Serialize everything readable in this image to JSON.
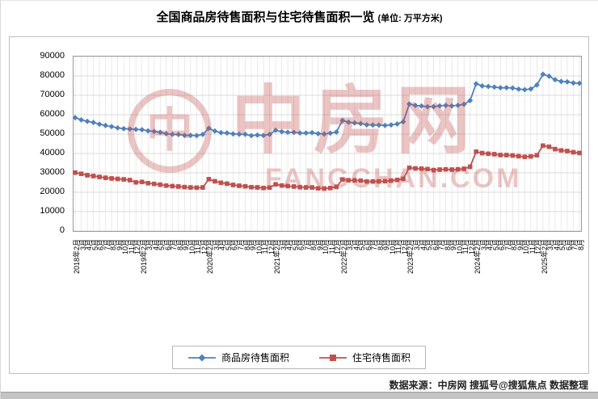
{
  "title": {
    "main": "全国商品房待售面积与住宅待售面积一览",
    "unit": "(单位: 万平方米)"
  },
  "watermark": {
    "symbol": "中",
    "name": "中房网",
    "domain": "FANGCHAN.COM"
  },
  "source_note": "数据来源：中房网 搜狐号@搜狐焦点 数据整理",
  "chart_data": {
    "type": "line",
    "title": "全国商品房待售面积与住宅待售面积一览",
    "unit": "万平方米",
    "xlabel": "",
    "ylabel": "",
    "ylim": [
      0,
      90000
    ],
    "ytick_interval": 10000,
    "grid": true,
    "legend_position": "bottom",
    "x": [
      "2018年2月",
      "3月",
      "4月",
      "5月",
      "6月",
      "7月",
      "8月",
      "9月",
      "10月",
      "11月",
      "12月",
      "2019年2月",
      "3月",
      "4月",
      "5月",
      "6月",
      "7月",
      "8月",
      "9月",
      "10月",
      "11月",
      "12月",
      "2020年2月",
      "3月",
      "4月",
      "5月",
      "6月",
      "7月",
      "8月",
      "9月",
      "10月",
      "11月",
      "12月",
      "2021年2月",
      "3月",
      "4月",
      "5月",
      "6月",
      "7月",
      "8月",
      "9月",
      "10月",
      "11月",
      "12月",
      "2022年2月",
      "3月",
      "4月",
      "5月",
      "6月",
      "7月",
      "8月",
      "9月",
      "10月",
      "11月",
      "12月",
      "2023年2月",
      "3月",
      "4月",
      "5月",
      "6月",
      "7月",
      "8月",
      "9月",
      "10月",
      "11月",
      "12月",
      "2024年2月",
      "3月",
      "4月",
      "5月",
      "6月",
      "7月",
      "8月",
      "9月",
      "10月",
      "11月",
      "12月",
      "2025年2月",
      "3月",
      "4月",
      "5月",
      "6月",
      "7月",
      "8月"
    ],
    "series": [
      {
        "name": "商品房待售面积",
        "color": "#4F81BD",
        "marker": "diamond",
        "values": [
          58468,
          57329,
          56579,
          56010,
          55083,
          54428,
          53873,
          53191,
          52789,
          52627,
          52414,
          52251,
          51646,
          51380,
          50928,
          50162,
          49876,
          49784,
          49346,
          49323,
          49221,
          49821,
          52976,
          51569,
          50733,
          50554,
          50081,
          49920,
          49864,
          49194,
          49492,
          49287,
          49850,
          51960,
          51253,
          50916,
          50858,
          50551,
          50535,
          50738,
          50211,
          50049,
          50472,
          51023,
          57026,
          56113,
          55735,
          55433,
          54784,
          54655,
          54605,
          54467,
          54734,
          55203,
          56366,
          65528,
          64770,
          64487,
          64120,
          64159,
          64564,
          64795,
          64537,
          64835,
          65385,
          67295,
          75969,
          74833,
          74553,
          74256,
          73894,
          73926,
          73783,
          73177,
          72909,
          73286,
          75327,
          80864,
          79869,
          78061,
          77132,
          76948,
          76386,
          76213
        ]
      },
      {
        "name": "住宅待售面积",
        "color": "#C0504D",
        "marker": "square",
        "values": [
          30129,
          29502,
          28761,
          28355,
          27896,
          27459,
          27106,
          26869,
          26637,
          26269,
          25091,
          25323,
          24662,
          24290,
          23906,
          23409,
          23148,
          22936,
          22660,
          22467,
          22353,
          22473,
          26707,
          25650,
          24886,
          24403,
          23764,
          23334,
          23031,
          22589,
          22491,
          22182,
          22379,
          24070,
          23467,
          23175,
          22936,
          22606,
          22489,
          22468,
          22006,
          21897,
          22154,
          22761,
          26592,
          26169,
          26102,
          25969,
          25559,
          25564,
          25597,
          25688,
          26003,
          26327,
          26947,
          32607,
          32271,
          32144,
          31943,
          31439,
          31666,
          31792,
          31660,
          31836,
          32104,
          33119,
          40925,
          40193,
          39866,
          39615,
          39191,
          39156,
          38967,
          38577,
          38270,
          38457,
          39088,
          44045,
          43464,
          42248,
          41568,
          41233,
          40632,
          40251
        ]
      }
    ]
  }
}
